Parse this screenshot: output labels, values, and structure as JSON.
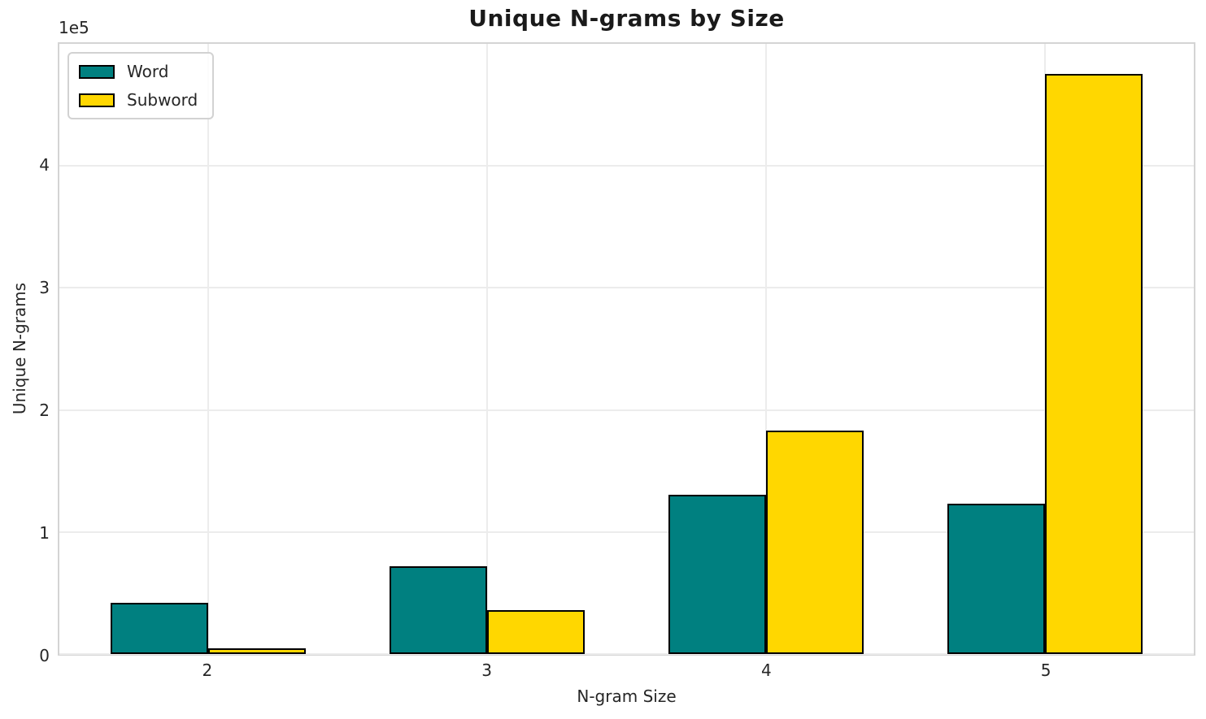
{
  "figure": {
    "title": "Unique N-grams by Size",
    "y_offset_label": "1e5"
  },
  "chart_data": {
    "type": "bar",
    "title": "Unique N-grams by Size",
    "xlabel": "N-gram Size",
    "ylabel": "Unique N-grams",
    "y_offset_text": "1e5",
    "categories": [
      2,
      3,
      4,
      5
    ],
    "series": [
      {
        "name": "Word",
        "color": "#008080",
        "values": [
          41700,
          72200,
          130500,
          123200
        ]
      },
      {
        "name": "Subword",
        "color": "#FFD700",
        "values": [
          4600,
          35800,
          182800,
          475500
        ]
      }
    ],
    "bar_width": 0.35,
    "bar_edge_color": "#000000",
    "xlim": [
      1.465,
      5.535
    ],
    "ylim": [
      0,
      500000
    ],
    "yticks": [
      {
        "value": 0,
        "label": "0"
      },
      {
        "value": 100000,
        "label": "1"
      },
      {
        "value": 200000,
        "label": "2"
      },
      {
        "value": 300000,
        "label": "3"
      },
      {
        "value": 400000,
        "label": "4"
      }
    ],
    "xticks": [
      {
        "value": 2,
        "label": "2"
      },
      {
        "value": 3,
        "label": "3"
      },
      {
        "value": 4,
        "label": "4"
      },
      {
        "value": 5,
        "label": "5"
      }
    ],
    "grid": true,
    "legend_position": "upper left",
    "colors": {
      "grid": "#ececec",
      "spine": "#d4d4d4",
      "text": "#262626"
    }
  }
}
